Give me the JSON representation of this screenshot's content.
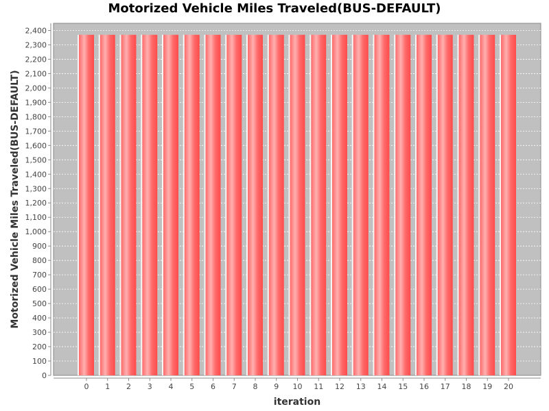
{
  "chart_data": {
    "type": "bar",
    "title": "Motorized Vehicle Miles Traveled(BUS-DEFAULT)",
    "xlabel": "iteration",
    "ylabel": "Motorized Vehicle Miles Traveled(BUS-DEFAULT)",
    "categories": [
      "0",
      "1",
      "2",
      "3",
      "4",
      "5",
      "6",
      "7",
      "8",
      "9",
      "10",
      "11",
      "12",
      "13",
      "14",
      "15",
      "16",
      "17",
      "18",
      "19",
      "20"
    ],
    "values": [
      2370,
      2370,
      2370,
      2370,
      2370,
      2370,
      2370,
      2370,
      2370,
      2370,
      2370,
      2370,
      2370,
      2370,
      2370,
      2370,
      2370,
      2370,
      2370,
      2370,
      2370
    ],
    "ylim": [
      0,
      2450
    ],
    "yticks": [
      0,
      100,
      200,
      300,
      400,
      500,
      600,
      700,
      800,
      900,
      1000,
      1100,
      1200,
      1300,
      1400,
      1500,
      1600,
      1700,
      1800,
      1900,
      2000,
      2100,
      2200,
      2300,
      2400
    ],
    "ytick_labels": [
      "0",
      "100",
      "200",
      "300",
      "400",
      "500",
      "600",
      "700",
      "800",
      "900",
      "1,000",
      "1,100",
      "1,200",
      "1,300",
      "1,400",
      "1,500",
      "1,600",
      "1,700",
      "1,800",
      "1,900",
      "2,000",
      "2,100",
      "2,200",
      "2,300",
      "2,400"
    ],
    "grid": true,
    "legend": "none",
    "colors": {
      "bar": "#ff5555",
      "bar_highlight": "#ffb0b0",
      "plot_background": "#c0c0c0",
      "gridline": "#ffffff"
    }
  }
}
